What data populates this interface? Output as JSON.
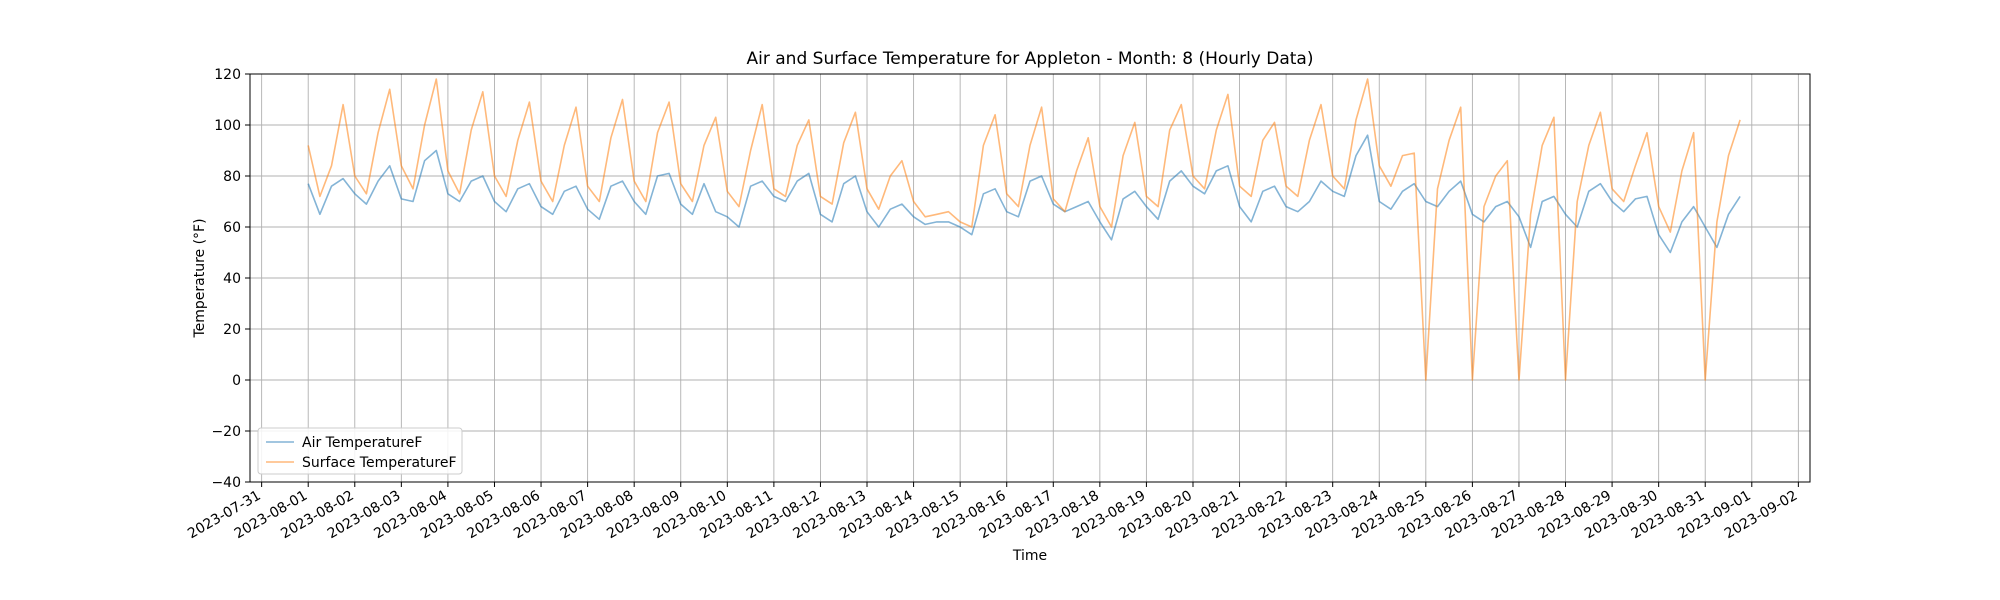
{
  "chart_data": {
    "type": "line",
    "title": "Air and Surface Temperature for Appleton - Month: 8 (Hourly Data)",
    "xlabel": "Time",
    "ylabel": "Temperature (°F)",
    "ylim": [
      -40,
      120
    ],
    "yticks": [
      -40,
      -20,
      0,
      20,
      40,
      60,
      80,
      100,
      120
    ],
    "xlim": [
      "2023-07-30T18:00",
      "2023-09-02T06:00"
    ],
    "xticks": [
      "2023-07-31",
      "2023-08-01",
      "2023-08-02",
      "2023-08-03",
      "2023-08-04",
      "2023-08-05",
      "2023-08-06",
      "2023-08-07",
      "2023-08-08",
      "2023-08-09",
      "2023-08-10",
      "2023-08-11",
      "2023-08-12",
      "2023-08-13",
      "2023-08-14",
      "2023-08-15",
      "2023-08-16",
      "2023-08-17",
      "2023-08-18",
      "2023-08-19",
      "2023-08-20",
      "2023-08-21",
      "2023-08-22",
      "2023-08-23",
      "2023-08-24",
      "2023-08-25",
      "2023-08-26",
      "2023-08-27",
      "2023-08-28",
      "2023-08-29",
      "2023-08-30",
      "2023-08-31",
      "2023-09-01",
      "2023-09-02"
    ],
    "grid": true,
    "legend_position": "lower-left",
    "sampling": "every 6 hours starting 2023-08-01T00:00 (approximate readings)",
    "series": [
      {
        "name": "Air TemperatureF",
        "color": "#1f77b4",
        "values": [
          77,
          65,
          76,
          79,
          73,
          69,
          78,
          84,
          71,
          70,
          86,
          90,
          73,
          70,
          78,
          80,
          70,
          66,
          75,
          77,
          68,
          65,
          74,
          76,
          67,
          63,
          76,
          78,
          70,
          65,
          80,
          81,
          69,
          65,
          77,
          66,
          64,
          60,
          76,
          78,
          72,
          70,
          78,
          81,
          65,
          62,
          77,
          80,
          66,
          60,
          67,
          69,
          64,
          61,
          62,
          62,
          60,
          57,
          73,
          75,
          66,
          64,
          78,
          80,
          69,
          66,
          68,
          70,
          62,
          55,
          71,
          74,
          68,
          63,
          78,
          82,
          76,
          73,
          82,
          84,
          68,
          62,
          74,
          76,
          68,
          66,
          70,
          78,
          74,
          72,
          88,
          96,
          70,
          67,
          74,
          77,
          70,
          68,
          74,
          78,
          65,
          62,
          68,
          70,
          64,
          52,
          70,
          72,
          65,
          60,
          74,
          77,
          70,
          66,
          71,
          72,
          57,
          50,
          62,
          68,
          60,
          52,
          65,
          72
        ]
      },
      {
        "name": "Surface TemperatureF",
        "color": "#ff7f0e",
        "values": [
          92,
          72,
          84,
          108,
          80,
          73,
          97,
          114,
          84,
          75,
          100,
          118,
          82,
          73,
          98,
          113,
          80,
          72,
          94,
          109,
          78,
          70,
          92,
          107,
          76,
          70,
          95,
          110,
          78,
          70,
          97,
          109,
          77,
          70,
          92,
          103,
          74,
          68,
          90,
          108,
          75,
          72,
          92,
          102,
          72,
          69,
          93,
          105,
          75,
          67,
          80,
          86,
          70,
          64,
          65,
          66,
          62,
          60,
          92,
          104,
          73,
          68,
          92,
          107,
          71,
          66,
          82,
          95,
          68,
          60,
          88,
          101,
          72,
          68,
          98,
          108,
          80,
          75,
          98,
          112,
          76,
          72,
          94,
          101,
          76,
          72,
          94,
          108,
          80,
          75,
          102,
          118,
          84,
          76,
          88,
          89,
          0,
          75,
          94,
          107,
          0,
          68,
          80,
          86,
          0,
          65,
          92,
          103,
          0,
          70,
          92,
          105,
          75,
          70,
          84,
          97,
          68,
          58,
          82,
          97,
          0,
          62,
          88,
          102
        ]
      }
    ]
  }
}
